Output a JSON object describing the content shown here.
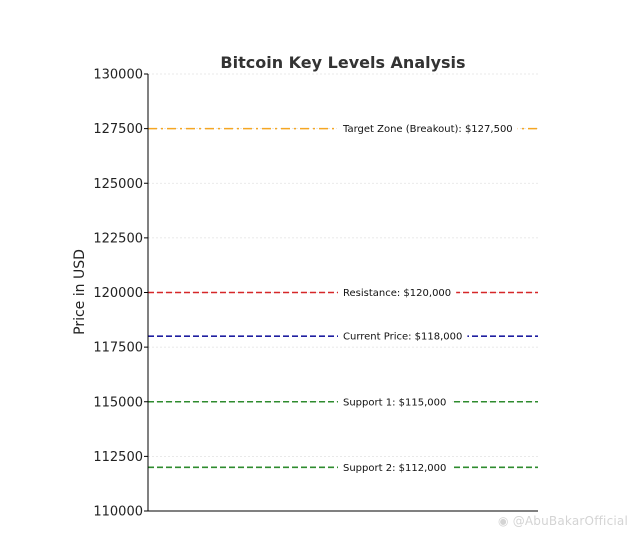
{
  "chart_data": {
    "type": "line",
    "title": "Bitcoin Key Levels Analysis",
    "xlabel": "",
    "ylabel": "Price in USD",
    "ylim": [
      110000,
      130000
    ],
    "yticks": [
      110000,
      112500,
      115000,
      117500,
      120000,
      122500,
      125000,
      127500,
      130000
    ],
    "ytick_labels": [
      "110000",
      "112500",
      "115000",
      "117500",
      "120000",
      "122500",
      "125000",
      "127500",
      "130000"
    ],
    "grid": true,
    "levels": [
      {
        "label": "Target Zone (Breakout): $127,500",
        "value": 127500,
        "color": "#f5a623",
        "style": "dashdot"
      },
      {
        "label": "Resistance: $120,000",
        "value": 120000,
        "color": "#d62728",
        "style": "dashed"
      },
      {
        "label": "Current Price: $118,000",
        "value": 118000,
        "color": "#1f1fa0",
        "style": "dashed"
      },
      {
        "label": "Support 1: $115,000",
        "value": 115000,
        "color": "#2e8b2e",
        "style": "dashed"
      },
      {
        "label": "Support 2: $112,000",
        "value": 112000,
        "color": "#2e8b2e",
        "style": "dashed"
      }
    ]
  },
  "watermark": {
    "text": "@AbuBakarOfficial"
  }
}
